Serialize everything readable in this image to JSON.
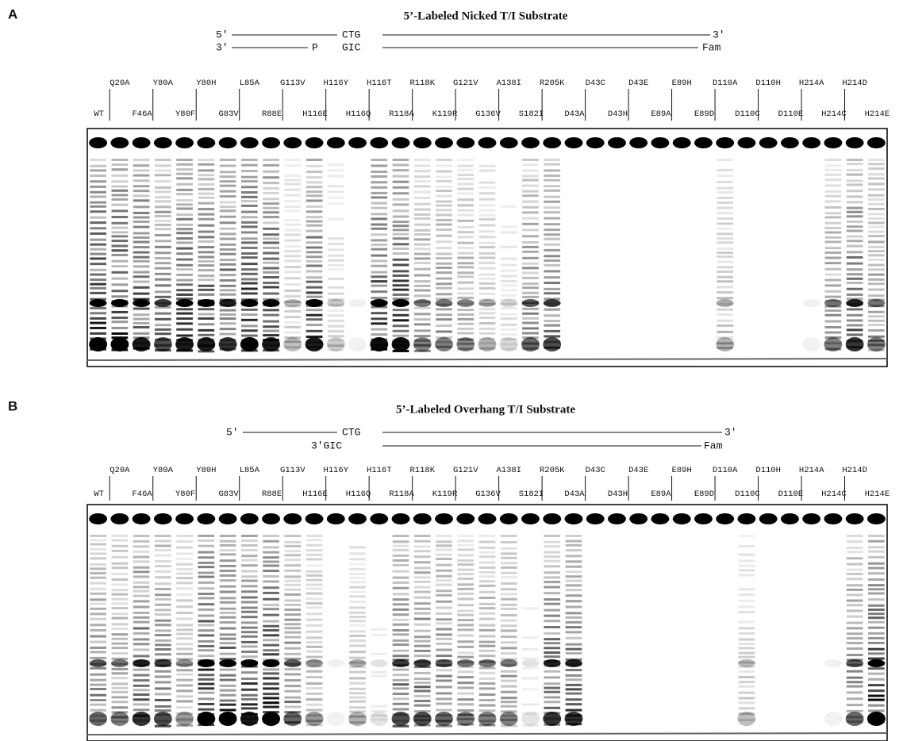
{
  "panels": [
    {
      "label": "A",
      "title": "5’-Labeled Nicked T/I Substrate",
      "substrate": {
        "top": {
          "left": "5′",
          "middle": "CTG",
          "right": "3′"
        },
        "bottom": {
          "left": "3′",
          "marker": "P",
          "middle": "GIC",
          "right": "Fam"
        }
      },
      "lane_labels_top": [
        "Q20A",
        "Y80A",
        "Y80H",
        "L85A",
        "G113V",
        "H116Y",
        "H116T",
        "R118K",
        "G121V",
        "A138I",
        "R205K",
        "D43C",
        "D43E",
        "E89H",
        "D110A",
        "D110H",
        "H214A",
        "H214D"
      ],
      "lane_labels_bottom": [
        "WT",
        "F46A",
        "Y80F",
        "G83V",
        "R88E",
        "H116E",
        "H116Q",
        "R118A",
        "K119R",
        "G136V",
        "S182I",
        "D43A",
        "D43H",
        "E89A",
        "E89D",
        "D110C",
        "D110E",
        "H214C",
        "H214E"
      ]
    },
    {
      "label": "B",
      "title": "5’-Labeled Overhang T/I Substrate",
      "substrate": {
        "top": {
          "left": "5′",
          "middle": "CTG",
          "right": "3′"
        },
        "bottom": {
          "left": "3′GIC",
          "right": "Fam"
        }
      },
      "lane_labels_top": [
        "Q20A",
        "Y80A",
        "Y80H",
        "L85A",
        "G113V",
        "H116Y",
        "H116T",
        "R118K",
        "G121V",
        "A138I",
        "R205K",
        "D43C",
        "D43E",
        "E89H",
        "D110A",
        "D110H",
        "H214A",
        "H214D"
      ],
      "lane_labels_bottom": [
        "WT",
        "F46A",
        "Y80F",
        "G83V",
        "R88E",
        "H116E",
        "H116Q",
        "R118A",
        "K119R",
        "G136V",
        "S182I",
        "D43A",
        "D43H",
        "E89A",
        "E89D",
        "D110C",
        "D110E",
        "H214C",
        "H214E"
      ]
    }
  ]
}
